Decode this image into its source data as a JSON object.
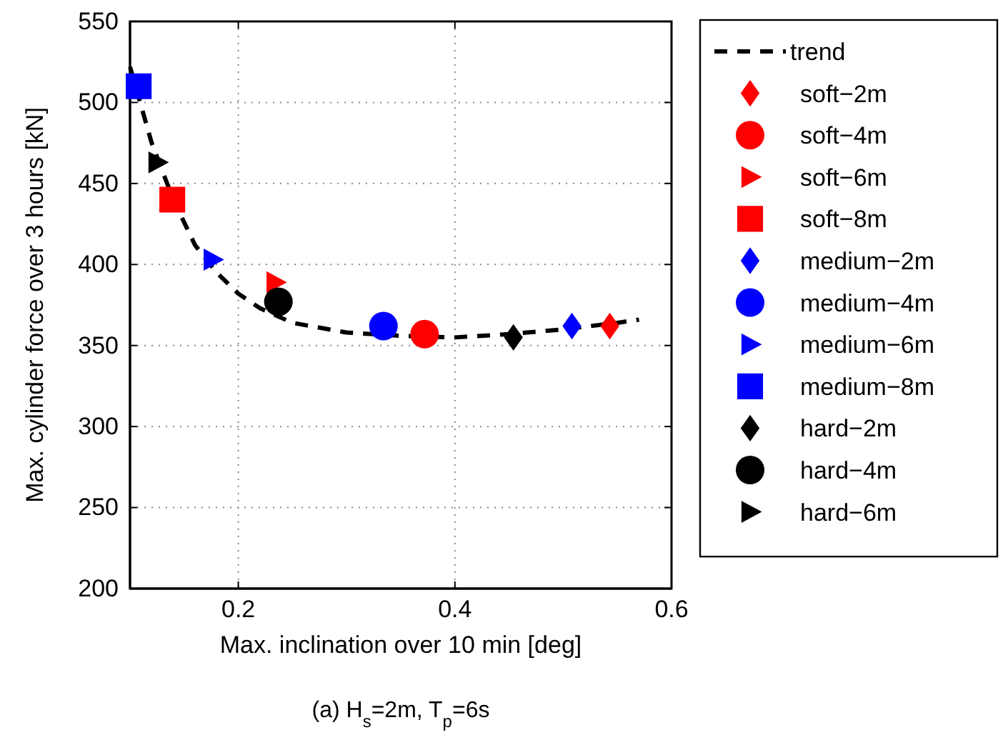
{
  "chart_data": {
    "type": "scatter",
    "xlabel": "Max. inclination over 10 min [deg]",
    "ylabel": "Max. cylinder force over 3 hours [kN]",
    "annotations": [
      "(a) H$_{s}$=2m, T$_{p}$=6s"
    ],
    "xlim": [
      0.1,
      0.6
    ],
    "xticks": [
      0.2,
      0.4,
      0.6
    ],
    "ylim": [
      200,
      550
    ],
    "yticks": [
      200,
      250,
      300,
      350,
      400,
      450,
      500,
      550
    ],
    "grid": true,
    "legend": "right",
    "series": [
      {
        "name": "trend",
        "type": "line",
        "line_style": "dashed",
        "marker": "none",
        "color": "#000000",
        "x": [
          0.1,
          0.12,
          0.14,
          0.16,
          0.18,
          0.2,
          0.22,
          0.25,
          0.3,
          0.35,
          0.4,
          0.45,
          0.5,
          0.55,
          0.57
        ],
        "values": [
          522,
          475,
          440,
          412,
          395,
          382,
          373,
          364,
          358,
          356,
          355,
          357,
          360,
          364,
          366
        ]
      },
      {
        "name": "soft−2m",
        "marker": "diamond",
        "color": "#ff0000",
        "x": [
          0.543
        ],
        "values": [
          362
        ]
      },
      {
        "name": "soft−4m",
        "marker": "circle",
        "color": "#ff0000",
        "x": [
          0.372
        ],
        "values": [
          357
        ]
      },
      {
        "name": "soft−6m",
        "marker": "triangle",
        "color": "#ff0000",
        "x": [
          0.234
        ],
        "values": [
          389
        ]
      },
      {
        "name": "soft−8m",
        "marker": "square",
        "color": "#ff0000",
        "x": [
          0.139
        ],
        "values": [
          440
        ]
      },
      {
        "name": "medium−2m",
        "marker": "diamond",
        "color": "#0000ff",
        "x": [
          0.508
        ],
        "values": [
          362
        ]
      },
      {
        "name": "medium−4m",
        "marker": "circle",
        "color": "#0000ff",
        "x": [
          0.334
        ],
        "values": [
          362
        ]
      },
      {
        "name": "medium−6m",
        "marker": "triangle",
        "color": "#0000ff",
        "x": [
          0.176
        ],
        "values": [
          403
        ]
      },
      {
        "name": "medium−8m",
        "marker": "square",
        "color": "#0000ff",
        "x": [
          0.108
        ],
        "values": [
          510
        ]
      },
      {
        "name": "hard−2m",
        "marker": "diamond",
        "color": "#000000",
        "x": [
          0.454
        ],
        "values": [
          355
        ]
      },
      {
        "name": "hard−4m",
        "marker": "circle",
        "color": "#000000",
        "x": [
          0.237
        ],
        "values": [
          377
        ]
      },
      {
        "name": "hard−6m",
        "marker": "triangle",
        "color": "#000000",
        "x": [
          0.125
        ],
        "values": [
          463
        ]
      }
    ]
  }
}
